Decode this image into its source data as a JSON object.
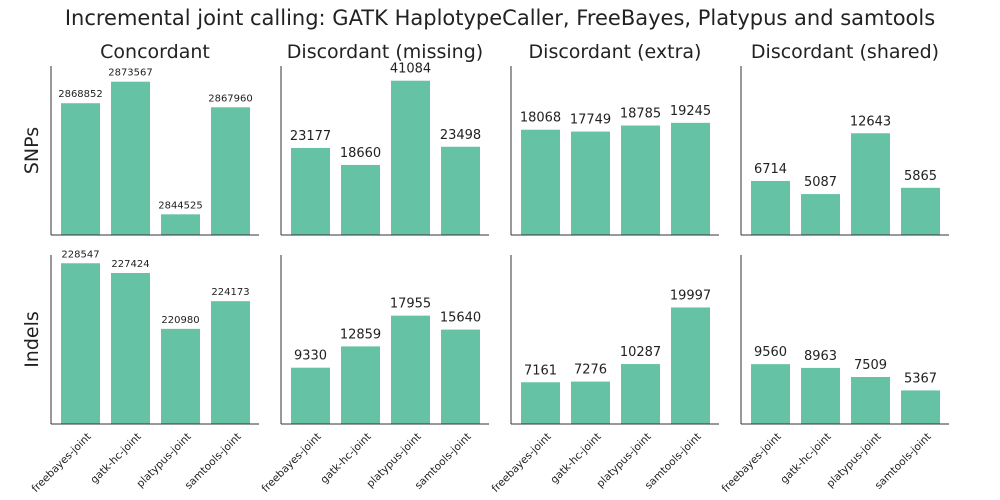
{
  "figure": {
    "title": "Incremental joint calling: GATK HaplotypeCaller, FreeBayes, Platypus and samtools"
  },
  "chart_data": {
    "type": "bar",
    "categories": [
      "freebayes-joint",
      "gatk-hc-joint",
      "platypus-joint",
      "samtools-joint"
    ],
    "columns": [
      "Concordant",
      "Discordant (missing)",
      "Discordant (extra)",
      "Discordant (shared)"
    ],
    "rows": [
      "SNPs",
      "Indels"
    ],
    "bar_color": "#66c2a5",
    "panels": [
      {
        "row": "SNPs",
        "column": "Concordant",
        "values": [
          2868852,
          2873567,
          2844525,
          2867960
        ],
        "ylim": [
          2840000,
          2877000
        ],
        "small_labels": true
      },
      {
        "row": "SNPs",
        "column": "Discordant (missing)",
        "values": [
          23177,
          18660,
          41084,
          23498
        ],
        "ylim": [
          0,
          45000
        ],
        "small_labels": false
      },
      {
        "row": "SNPs",
        "column": "Discordant (extra)",
        "values": [
          18068,
          17749,
          18785,
          19245
        ],
        "ylim": [
          0,
          29000
        ],
        "small_labels": false
      },
      {
        "row": "SNPs",
        "column": "Discordant (shared)",
        "values": [
          6714,
          5087,
          12643,
          5865
        ],
        "ylim": [
          0,
          21000
        ],
        "small_labels": false
      },
      {
        "row": "Indels",
        "column": "Concordant",
        "values": [
          228547,
          227424,
          220980,
          224173
        ],
        "ylim": [
          210000,
          229500
        ],
        "small_labels": true
      },
      {
        "row": "Indels",
        "column": "Discordant (missing)",
        "values": [
          9330,
          12859,
          17955,
          15640
        ],
        "ylim": [
          0,
          28000
        ],
        "small_labels": false
      },
      {
        "row": "Indels",
        "column": "Discordant (extra)",
        "values": [
          7161,
          7276,
          10287,
          19997
        ],
        "ylim": [
          0,
          29000
        ],
        "small_labels": false
      },
      {
        "row": "Indels",
        "column": "Discordant (shared)",
        "values": [
          9560,
          8963,
          7509,
          5367
        ],
        "ylim": [
          0,
          27000
        ],
        "small_labels": false
      }
    ]
  }
}
